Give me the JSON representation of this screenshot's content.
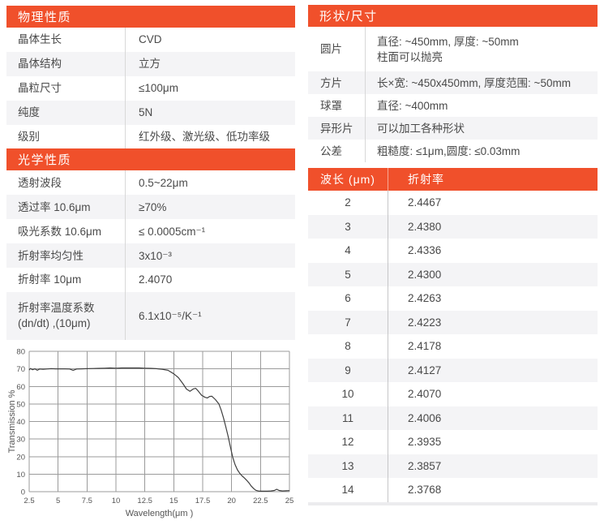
{
  "colors": {
    "accent": "#F0502B",
    "stripe": "#F4F4F6",
    "divider": "#D8D8D8",
    "header_text": "#FFFFFF",
    "chart_grid": "#9B9B9B",
    "chart_line": "#3F3F3F"
  },
  "physical": {
    "title": "物理性质",
    "rows": [
      {
        "label": "晶体生长",
        "value": "CVD"
      },
      {
        "label": "晶体结构",
        "value": "立方"
      },
      {
        "label": "晶粒尺寸",
        "value": "≤100μm"
      },
      {
        "label": "纯度",
        "value": "5N"
      },
      {
        "label": "级别",
        "value": "红外级、激光级、低功率级"
      }
    ]
  },
  "optical": {
    "title": "光学性质",
    "rows": [
      {
        "label": "透射波段",
        "value": "0.5~22μm"
      },
      {
        "label": "透过率 10.6μm",
        "value": "≥70%"
      },
      {
        "label": "吸光系数 10.6μm",
        "value": "≤ 0.0005cm⁻¹"
      },
      {
        "label": "折射率均匀性",
        "value": "3x10⁻³"
      },
      {
        "label": "折射率 10μm",
        "value": "2.4070"
      },
      {
        "label": "折射率温度系数\n(dn/dt) ,(10μm)",
        "value": "6.1x10⁻⁵/K⁻¹"
      }
    ]
  },
  "shape": {
    "title": "形状/尺寸",
    "rows": [
      {
        "label": "圆片",
        "value": "直径: ~450mm, 厚度: ~50mm\n柱面可以抛亮"
      },
      {
        "label": "方片",
        "value": "长×宽: ~450x450mm, 厚度范围: ~50mm"
      },
      {
        "label": "球罩",
        "value": "直径: ~400mm"
      },
      {
        "label": "异形片",
        "value": "可以加工各种形状"
      },
      {
        "label": "公差",
        "value": "粗糙度: ≤1μm,圆度: ≤0.03mm"
      }
    ]
  },
  "refractive_table": {
    "headers": [
      "波长 (μm)",
      "折射率"
    ],
    "rows": [
      [
        "2",
        "2.4467"
      ],
      [
        "3",
        "2.4380"
      ],
      [
        "4",
        "2.4336"
      ],
      [
        "5",
        "2.4300"
      ],
      [
        "6",
        "2.4263"
      ],
      [
        "7",
        "2.4223"
      ],
      [
        "8",
        "2.4178"
      ],
      [
        "9",
        "2.4127"
      ],
      [
        "10",
        "2.4070"
      ],
      [
        "11",
        "2.4006"
      ],
      [
        "12",
        "2.3935"
      ],
      [
        "13",
        "2.3857"
      ],
      [
        "14",
        "2.3768"
      ]
    ]
  },
  "chart_data": {
    "type": "line",
    "title": "",
    "xlabel": "Wavelength(μm )",
    "ylabel": "Transmission %",
    "xlim": [
      2.5,
      25
    ],
    "ylim": [
      0,
      80
    ],
    "xticks": [
      2.5,
      5,
      7.5,
      10,
      12.5,
      15,
      17.5,
      20,
      22.5,
      25
    ],
    "yticks": [
      0,
      10,
      20,
      30,
      40,
      50,
      60,
      70,
      80
    ],
    "grid": true,
    "legend": false,
    "series": [
      {
        "name": "transmission",
        "x": [
          2.5,
          2.6,
          2.8,
          3.0,
          3.2,
          3.4,
          3.7,
          4.0,
          4.4,
          4.8,
          5.2,
          5.6,
          6.0,
          6.3,
          6.6,
          7.0,
          7.5,
          8.0,
          8.5,
          9.0,
          9.5,
          10.0,
          10.5,
          11.0,
          11.5,
          12.0,
          12.5,
          13.0,
          13.5,
          14.0,
          14.5,
          15.0,
          15.4,
          15.8,
          16.1,
          16.4,
          16.7,
          16.9,
          17.1,
          17.4,
          17.7,
          17.9,
          18.1,
          18.3,
          18.6,
          18.9,
          19.1,
          19.3,
          19.5,
          19.7,
          19.9,
          20.1,
          20.3,
          20.5,
          20.7,
          20.9,
          21.1,
          21.3,
          21.5,
          21.7,
          21.9,
          22.1,
          22.3,
          22.5,
          22.8,
          23.1,
          23.4,
          23.7,
          23.9,
          24.1,
          24.4,
          24.7,
          25.0
        ],
        "y": [
          69.3,
          70.2,
          69.5,
          70.0,
          69.2,
          69.9,
          69.8,
          69.9,
          70.1,
          70.0,
          70.0,
          70.0,
          69.9,
          69.2,
          69.9,
          70.0,
          70.1,
          70.2,
          70.3,
          70.4,
          70.5,
          70.4,
          70.5,
          70.5,
          70.5,
          70.5,
          70.4,
          70.3,
          70.1,
          69.8,
          69.2,
          67.2,
          65.0,
          61.5,
          58.5,
          57.2,
          58.6,
          58.9,
          57.5,
          55.0,
          53.8,
          53.4,
          54.3,
          54.4,
          52.5,
          50.0,
          46.5,
          42.0,
          37.0,
          31.5,
          25.5,
          19.5,
          15.5,
          12.5,
          10.5,
          9.0,
          7.8,
          6.5,
          5.0,
          3.2,
          1.8,
          0.8,
          0.4,
          0.3,
          0.3,
          0.3,
          0.4,
          0.7,
          1.4,
          0.7,
          0.4,
          0.5,
          0.6
        ]
      }
    ]
  }
}
